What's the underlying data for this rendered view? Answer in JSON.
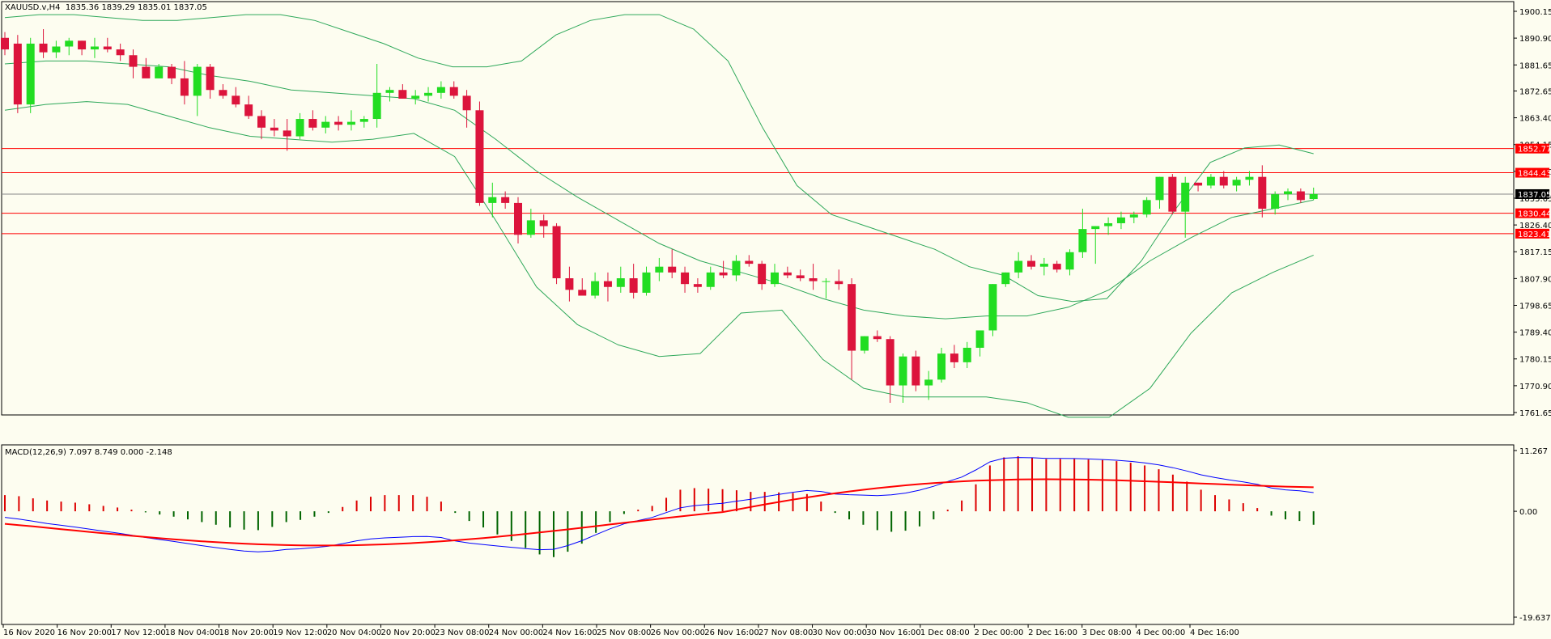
{
  "colors": {
    "background": "#fdfdf0",
    "bull": "#22dd22",
    "bear": "#dc143c",
    "band": "#2ea85a",
    "level": "#ff0000",
    "macd_signal": "#ff0000",
    "macd_line": "#0000ff",
    "hist_pos": "#dd0000",
    "hist_neg": "#006400",
    "border": "#000000"
  },
  "header": {
    "symbol_tf": "XAUUSD.v,H4",
    "ohlc": "1835.36 1839.29 1835.01 1837.05"
  },
  "macd_header": {
    "label": "MACD(12,26,9) 7.097 8.749 0.000 -2.148"
  },
  "chart_data": [
    {
      "type": "candlestick",
      "y_ticks": [
        "1900.15",
        "1890.90",
        "1881.65",
        "1872.65",
        "1863.40",
        "1854.15",
        "1844.90",
        "1835.65",
        "1826.40",
        "1817.15",
        "1807.90",
        "1798.65",
        "1789.40",
        "1780.15",
        "1770.90",
        "1761.65"
      ],
      "ylim": [
        1761.65,
        1900.15
      ],
      "x_ticks": [
        "16 Nov 2020",
        "16 Nov 20:00",
        "17 Nov 12:00",
        "18 Nov 04:00",
        "18 Nov 20:00",
        "19 Nov 12:00",
        "20 Nov 04:00",
        "20 Nov 20:00",
        "23 Nov 08:00",
        "24 Nov 00:00",
        "24 Nov 16:00",
        "25 Nov 08:00",
        "26 Nov 00:00",
        "26 Nov 16:00",
        "27 Nov 08:00",
        "30 Nov 00:00",
        "30 Nov 16:00",
        "1 Dec 08:00",
        "2 Dec 00:00",
        "2 Dec 16:00",
        "3 Dec 08:00",
        "4 Dec 00:00",
        "4 Dec 16:00"
      ],
      "price_levels": [
        {
          "value": 1852.77,
          "label": "1852.77"
        },
        {
          "value": 1844.43,
          "label": "1844.43"
        },
        {
          "value": 1830.44,
          "label": "1830.44"
        },
        {
          "value": 1823.41,
          "label": "1823.41"
        }
      ],
      "current_price": {
        "value": 1837.05,
        "label": "1837.05"
      },
      "candles": [
        [
          1891.0,
          1893.0,
          1885.0,
          1887.0
        ],
        [
          1889.0,
          1892.0,
          1865.0,
          1868.0
        ],
        [
          1868.0,
          1891.0,
          1865.0,
          1889.0
        ],
        [
          1889.0,
          1894.0,
          1884.0,
          1886.0
        ],
        [
          1886.0,
          1890.0,
          1884.0,
          1888.0
        ],
        [
          1888.0,
          1891.0,
          1885.0,
          1890.0
        ],
        [
          1890.0,
          1890.0,
          1885.0,
          1887.0
        ],
        [
          1887.0,
          1891.0,
          1884.0,
          1888.0
        ],
        [
          1888.0,
          1891.0,
          1886.0,
          1887.0
        ],
        [
          1887.0,
          1889.0,
          1883.0,
          1885.0
        ],
        [
          1885.0,
          1887.0,
          1877.0,
          1881.0
        ],
        [
          1881.0,
          1884.0,
          1878.0,
          1877.0
        ],
        [
          1877.0,
          1882.0,
          1877.0,
          1881.0
        ],
        [
          1881.0,
          1882.0,
          1875.0,
          1877.0
        ],
        [
          1877.0,
          1883.0,
          1868.0,
          1871.0
        ],
        [
          1871.0,
          1882.0,
          1864.0,
          1881.0
        ],
        [
          1881.0,
          1882.0,
          1870.0,
          1873.0
        ],
        [
          1873.0,
          1875.0,
          1870.0,
          1871.0
        ],
        [
          1871.0,
          1874.0,
          1867.0,
          1868.0
        ],
        [
          1868.0,
          1871.0,
          1863.0,
          1864.0
        ],
        [
          1864.0,
          1866.0,
          1856.0,
          1860.0
        ],
        [
          1860.0,
          1863.0,
          1857.0,
          1859.0
        ],
        [
          1859.0,
          1863.0,
          1852.0,
          1857.0
        ],
        [
          1857.0,
          1865.0,
          1856.0,
          1863.0
        ],
        [
          1863.0,
          1866.0,
          1859.0,
          1860.0
        ],
        [
          1860.0,
          1864.0,
          1858.0,
          1862.0
        ],
        [
          1862.0,
          1864.0,
          1859.0,
          1861.0
        ],
        [
          1861.0,
          1866.0,
          1859.0,
          1862.0
        ],
        [
          1862.0,
          1864.0,
          1860.0,
          1863.0
        ],
        [
          1863.0,
          1882.0,
          1860.0,
          1872.0
        ],
        [
          1872.0,
          1874.0,
          1869.0,
          1873.0
        ],
        [
          1873.0,
          1875.0,
          1870.0,
          1870.0
        ],
        [
          1870.0,
          1873.0,
          1868.0,
          1871.0
        ],
        [
          1871.0,
          1874.0,
          1869.0,
          1872.0
        ],
        [
          1872.0,
          1876.0,
          1870.0,
          1874.0
        ],
        [
          1874.0,
          1876.0,
          1870.0,
          1871.0
        ],
        [
          1871.0,
          1873.0,
          1860.0,
          1866.0
        ],
        [
          1866.0,
          1869.0,
          1833.0,
          1834.0
        ],
        [
          1834.0,
          1841.0,
          1829.0,
          1836.0
        ],
        [
          1836.0,
          1838.0,
          1832.0,
          1834.0
        ],
        [
          1834.0,
          1836.0,
          1820.0,
          1823.0
        ],
        [
          1823.0,
          1832.0,
          1822.0,
          1828.0
        ],
        [
          1828.0,
          1830.0,
          1822.0,
          1826.0
        ],
        [
          1826.0,
          1827.0,
          1806.0,
          1808.0
        ],
        [
          1808.0,
          1812.0,
          1800.0,
          1804.0
        ],
        [
          1804.0,
          1808.0,
          1802.0,
          1802.0
        ],
        [
          1802.0,
          1810.0,
          1801.0,
          1807.0
        ],
        [
          1807.0,
          1810.0,
          1800.0,
          1805.0
        ],
        [
          1805.0,
          1812.0,
          1803.0,
          1808.0
        ],
        [
          1808.0,
          1813.0,
          1801.0,
          1803.0
        ],
        [
          1803.0,
          1812.0,
          1802.0,
          1810.0
        ],
        [
          1810.0,
          1815.0,
          1807.0,
          1812.0
        ],
        [
          1812.0,
          1818.0,
          1808.0,
          1810.0
        ],
        [
          1810.0,
          1812.0,
          1803.0,
          1806.0
        ],
        [
          1806.0,
          1808.0,
          1803.0,
          1805.0
        ],
        [
          1805.0,
          1812.0,
          1804.0,
          1810.0
        ],
        [
          1810.0,
          1814.0,
          1808.0,
          1809.0
        ],
        [
          1809.0,
          1816.0,
          1807.0,
          1814.0
        ],
        [
          1814.0,
          1816.0,
          1812.0,
          1813.0
        ],
        [
          1813.0,
          1814.0,
          1804.0,
          1806.0
        ],
        [
          1806.0,
          1813.0,
          1805.0,
          1810.0
        ],
        [
          1810.0,
          1812.0,
          1808.0,
          1809.0
        ],
        [
          1809.0,
          1811.0,
          1807.0,
          1808.0
        ],
        [
          1808.0,
          1813.0,
          1804.0,
          1807.0
        ],
        [
          1807.0,
          1808.0,
          1801.0,
          1807.0
        ],
        [
          1807.0,
          1811.0,
          1804.0,
          1806.0
        ],
        [
          1806.0,
          1808.0,
          1773.0,
          1783.0
        ],
        [
          1783.0,
          1788.0,
          1782.0,
          1788.0
        ],
        [
          1788.0,
          1790.0,
          1786.0,
          1787.0
        ],
        [
          1787.0,
          1788.0,
          1765.0,
          1771.0
        ],
        [
          1771.0,
          1782.0,
          1765.0,
          1781.0
        ],
        [
          1781.0,
          1783.0,
          1769.0,
          1771.0
        ],
        [
          1771.0,
          1776.0,
          1766.0,
          1773.0
        ],
        [
          1773.0,
          1784.0,
          1772.0,
          1782.0
        ],
        [
          1782.0,
          1785.0,
          1777.0,
          1779.0
        ],
        [
          1779.0,
          1786.0,
          1777.0,
          1784.0
        ],
        [
          1784.0,
          1790.0,
          1781.0,
          1790.0
        ],
        [
          1790.0,
          1806.0,
          1788.0,
          1806.0
        ],
        [
          1806.0,
          1810.0,
          1805.0,
          1810.0
        ],
        [
          1810.0,
          1817.0,
          1808.0,
          1814.0
        ],
        [
          1814.0,
          1816.0,
          1811.0,
          1812.0
        ],
        [
          1812.0,
          1815.0,
          1809.0,
          1813.0
        ],
        [
          1813.0,
          1814.0,
          1810.0,
          1811.0
        ],
        [
          1811.0,
          1818.0,
          1809.0,
          1817.0
        ],
        [
          1817.0,
          1832.0,
          1815.0,
          1825.0
        ],
        [
          1825.0,
          1826.0,
          1813.0,
          1826.0
        ],
        [
          1826.0,
          1829.0,
          1823.0,
          1827.0
        ],
        [
          1827.0,
          1831.0,
          1825.0,
          1829.0
        ],
        [
          1829.0,
          1831.0,
          1827.0,
          1830.0
        ],
        [
          1830.0,
          1836.0,
          1829.0,
          1835.0
        ],
        [
          1835.0,
          1843.0,
          1832.0,
          1843.0
        ],
        [
          1843.0,
          1844.0,
          1830.0,
          1831.0
        ],
        [
          1831.0,
          1843.0,
          1822.0,
          1841.0
        ],
        [
          1841.0,
          1841.0,
          1838.0,
          1840.0
        ],
        [
          1840.0,
          1844.0,
          1839.0,
          1843.0
        ],
        [
          1843.0,
          1845.0,
          1839.0,
          1840.0
        ],
        [
          1840.0,
          1843.0,
          1838.0,
          1842.0
        ],
        [
          1842.0,
          1845.0,
          1840.0,
          1843.0
        ],
        [
          1843.0,
          1847.0,
          1829.0,
          1832.0
        ],
        [
          1832.0,
          1838.0,
          1830.0,
          1837.0
        ],
        [
          1837.0,
          1839.0,
          1835.0,
          1838.0
        ],
        [
          1838.0,
          1839.0,
          1834.0,
          1835.0
        ],
        [
          1835.36,
          1839.29,
          1835.01,
          1837.05
        ]
      ],
      "bollinger_upper": [
        1898.0,
        1899.0,
        1899.0,
        1898.0,
        1897.0,
        1897.0,
        1898.0,
        1899.0,
        1899.0,
        1897.0,
        1893.0,
        1889.0,
        1884.0,
        1881.0,
        1881.0,
        1883.0,
        1892.0,
        1897.0,
        1899.0,
        1899.0,
        1894.0,
        1883.0,
        1860.0,
        1840.0,
        1830.0,
        1826.0,
        1822.0,
        1818.0,
        1812.0,
        1809.0,
        1802.0,
        1800.0,
        1801.0,
        1814.0,
        1832.0,
        1848.0,
        1853.0,
        1854.0,
        1851.0
      ],
      "bollinger_middle": [
        1882.0,
        1883.0,
        1883.0,
        1882.0,
        1881.0,
        1878.0,
        1876.0,
        1873.0,
        1872.0,
        1871.0,
        1870.0,
        1866.0,
        1856.0,
        1845.0,
        1836.0,
        1828.0,
        1820.0,
        1814.0,
        1810.0,
        1806.0,
        1801.0,
        1797.0,
        1795.0,
        1794.0,
        1795.0,
        1795.0,
        1798.0,
        1804.0,
        1814.0,
        1822.0,
        1829.0,
        1832.0,
        1835.0
      ],
      "bollinger_lower": [
        1866.0,
        1868.0,
        1869.0,
        1868.0,
        1864.0,
        1860.0,
        1857.0,
        1856.0,
        1855.0,
        1856.0,
        1858.0,
        1850.0,
        1828.0,
        1805.0,
        1792.0,
        1785.0,
        1781.0,
        1782.0,
        1796.0,
        1797.0,
        1780.0,
        1770.0,
        1767.0,
        1767.0,
        1767.0,
        1765.0,
        1760.0,
        1760.0,
        1770.0,
        1789.0,
        1803.0,
        1810.0,
        1816.0
      ]
    },
    {
      "type": "macd",
      "y_ticks": [
        "11.267",
        "0.00",
        "-19.637"
      ],
      "ylim": [
        -19.637,
        11.267
      ],
      "histogram": [
        3.0,
        2.8,
        2.4,
        2.0,
        1.8,
        1.6,
        1.3,
        1.0,
        0.7,
        0.3,
        -0.2,
        -0.6,
        -1.0,
        -1.5,
        -2.0,
        -2.5,
        -3.0,
        -3.4,
        -3.5,
        -2.9,
        -2.0,
        -1.6,
        -1.0,
        -0.3,
        0.8,
        2.0,
        2.7,
        3.0,
        3.0,
        3.0,
        2.7,
        1.8,
        -0.3,
        -1.8,
        -3.0,
        -4.3,
        -5.5,
        -6.8,
        -8.0,
        -8.5,
        -7.5,
        -6.0,
        -4.0,
        -2.0,
        -0.5,
        0.3,
        1.0,
        2.5,
        4.0,
        4.3,
        4.2,
        4.1,
        3.9,
        3.6,
        3.6,
        3.5,
        3.4,
        3.2,
        1.8,
        -0.3,
        -1.5,
        -2.5,
        -3.5,
        -3.8,
        -3.6,
        -2.8,
        -1.5,
        0.3,
        2.0,
        5.0,
        8.5,
        10.0,
        10.2,
        10.0,
        9.7,
        9.7,
        9.7,
        9.6,
        9.5,
        9.3,
        9.0,
        8.5,
        7.8,
        6.8,
        5.5,
        4.0,
        3.0,
        2.2,
        1.5,
        0.6,
        -0.8,
        -1.5,
        -1.8,
        -2.5
      ]
    }
  ]
}
